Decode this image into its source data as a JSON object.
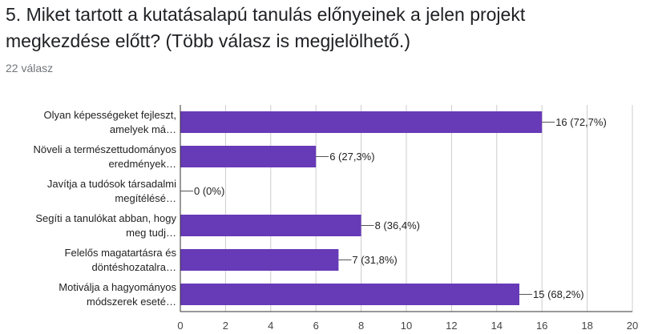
{
  "question": {
    "title": "5. Miket tartott a kutatásalapú tanulás előnyeinek a jelen projekt megkezdése előtt? (Több válasz is megjelölhető.)",
    "response_count": "22 válasz"
  },
  "colors": {
    "bar": "#673ab7",
    "gridline": "#cccccc",
    "axis": "#333333"
  },
  "chart_data": {
    "type": "bar",
    "orientation": "horizontal",
    "categories": [
      [
        "Olyan képességeket fejleszt,",
        "amelyek má…"
      ],
      [
        "Növeli a természettudományos",
        "eredmények…"
      ],
      [
        "Javítja a tudósok társadalmi",
        "megítélésé…"
      ],
      [
        "Segíti a tanulókat abban, hogy",
        "meg tudj…"
      ],
      [
        "Felelős magatartásra és",
        "döntéshozatalra…"
      ],
      [
        "Motiválja a hagyományos",
        "módszerek eseté…"
      ]
    ],
    "values": [
      16,
      6,
      0,
      8,
      7,
      15
    ],
    "value_labels": [
      "16 (72,7%)",
      "6 (27,3%)",
      "0 (0%)",
      "8 (36,4%)",
      "7 (31,8%)",
      "15 (68,2%)"
    ],
    "xlim": [
      0,
      20
    ],
    "xticks": [
      "0",
      "2",
      "4",
      "6",
      "8",
      "10",
      "12",
      "14",
      "16",
      "18",
      "20"
    ],
    "grid": true
  }
}
